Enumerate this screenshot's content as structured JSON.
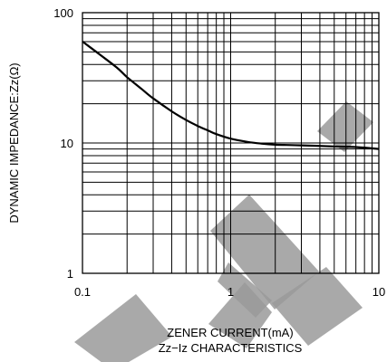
{
  "chart_data": {
    "type": "line",
    "title": "",
    "xlabel": "ZENER CURRENT(mA)",
    "ylabel": "DYNAMIC IMPEDANCE:Zz(Ω)",
    "caption": "Zz−Iz CHARACTERISTICS",
    "xscale": "log",
    "yscale": "log",
    "xlim": [
      0.1,
      10
    ],
    "ylim": [
      1,
      100
    ],
    "grid": true,
    "x_ticks": [
      0.1,
      1,
      10
    ],
    "x_tick_labels": [
      "0.1",
      "1",
      "10"
    ],
    "y_ticks": [
      1,
      10,
      100
    ],
    "y_tick_labels": [
      "1",
      "10",
      "100"
    ],
    "series": [
      {
        "x": [
          0.1,
          0.13,
          0.17,
          0.2,
          0.25,
          0.3,
          0.4,
          0.5,
          0.6,
          0.7,
          0.8,
          1.0,
          1.3,
          1.6,
          2.0,
          3.0,
          5.0,
          7.0,
          10.0
        ],
        "y": [
          60,
          48,
          38,
          32,
          26,
          22,
          17.5,
          15,
          13.5,
          12.5,
          11.7,
          10.8,
          10.2,
          9.9,
          9.7,
          9.6,
          9.4,
          9.3,
          9.0
        ]
      }
    ]
  },
  "colors": {
    "line": "#000000",
    "grid": "#000000",
    "background": "#ffffff",
    "watermark": "#9a9a9a"
  }
}
